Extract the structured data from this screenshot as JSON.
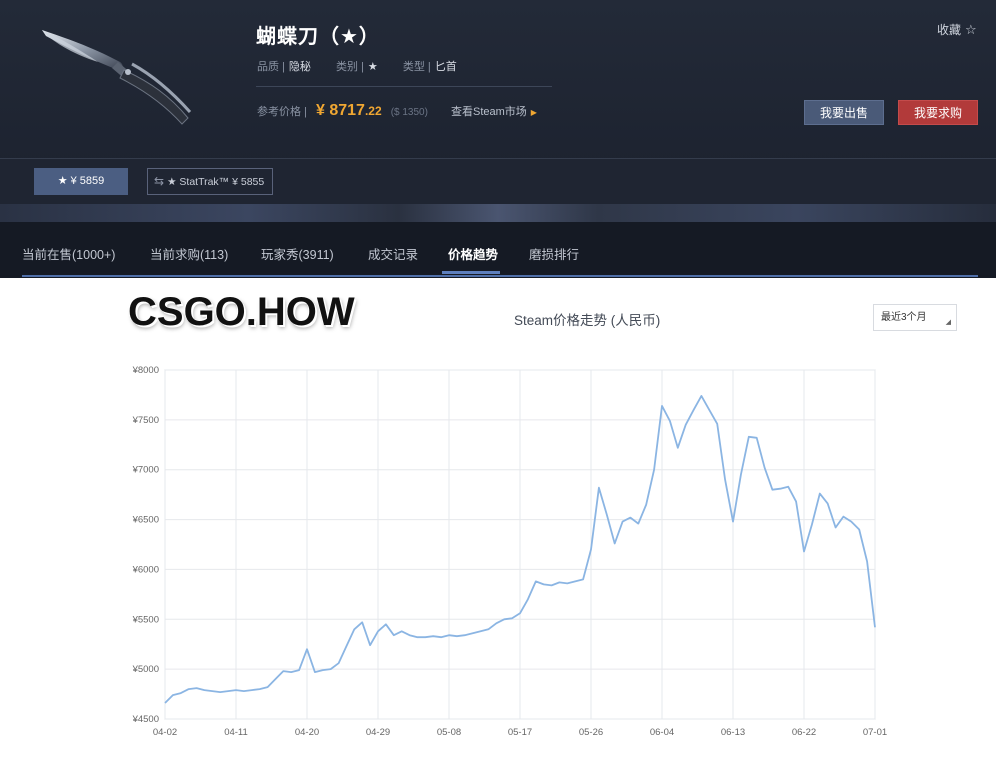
{
  "item": {
    "title": "蝴蝶刀（★）",
    "quality_label": "品质 |",
    "quality_value": "隐秘",
    "category_label": "类别 |",
    "category_value": "★",
    "type_label": "类型 |",
    "type_value": "匕首",
    "ref_price_label": "参考价格 |",
    "price_symbol": "¥",
    "price_int": "8717",
    "price_cents": ".22",
    "price_sub": "($ 1350)",
    "steam_link": "查看Steam市场",
    "fav_label": "收藏"
  },
  "actions": {
    "sell": "我要出售",
    "buy": "我要求购"
  },
  "variants": {
    "normal": "★ ¥ 5859",
    "stattrak": "★ StatTrak™ ¥ 5855"
  },
  "tabs": [
    {
      "label": "当前在售(1000+)"
    },
    {
      "label": "当前求购(113)"
    },
    {
      "label": "玩家秀(3911)"
    },
    {
      "label": "成交记录"
    },
    {
      "label": "价格趋势"
    },
    {
      "label": "磨损排行"
    }
  ],
  "watermark": "CSGO.HOW",
  "range_select": "最近3个月",
  "colors": {
    "line": "#8bb5e3",
    "accent_price": "#f0a732",
    "sell_btn": "#4a5a78",
    "buy_btn": "#b23a3a"
  },
  "chart_data": {
    "type": "line",
    "title": "Steam价格走势 (人民币)",
    "y_ticks": [
      "¥4500",
      "¥5000",
      "¥5500",
      "¥6000",
      "¥6500",
      "¥7000",
      "¥7500",
      "¥8000"
    ],
    "x_ticks": [
      "04-02",
      "04-11",
      "04-20",
      "04-29",
      "05-08",
      "05-17",
      "05-26",
      "06-04",
      "06-13",
      "06-22",
      "07-01"
    ],
    "ylim": [
      4500,
      8000
    ],
    "grid": true,
    "series": [
      {
        "x": [
          "04-02",
          "04-03",
          "04-04",
          "04-05",
          "04-06",
          "04-07",
          "04-08",
          "04-09",
          "04-10",
          "04-11",
          "04-12",
          "04-13",
          "04-14",
          "04-15",
          "04-16",
          "04-17",
          "04-18",
          "04-19",
          "04-20",
          "04-21",
          "04-22",
          "04-23",
          "04-24",
          "04-25",
          "04-26",
          "04-27",
          "04-28",
          "04-29",
          "04-30",
          "05-01",
          "05-02",
          "05-03",
          "05-04",
          "05-05",
          "05-06",
          "05-07",
          "05-08",
          "05-09",
          "05-10",
          "05-11",
          "05-12",
          "05-13",
          "05-14",
          "05-15",
          "05-16",
          "05-17",
          "05-18",
          "05-19",
          "05-20",
          "05-21",
          "05-22",
          "05-23",
          "05-24",
          "05-25",
          "05-26",
          "05-27",
          "05-28",
          "05-29",
          "05-30",
          "05-31",
          "06-01",
          "06-02",
          "06-03",
          "06-04",
          "06-05",
          "06-06",
          "06-07",
          "06-08",
          "06-09",
          "06-10",
          "06-11",
          "06-12",
          "06-13",
          "06-14",
          "06-15",
          "06-16",
          "06-17",
          "06-18",
          "06-19",
          "06-20",
          "06-21",
          "06-22",
          "06-23",
          "06-24",
          "06-25",
          "06-26",
          "06-27",
          "06-28",
          "06-29",
          "06-30",
          "07-01"
        ],
        "values": [
          4660,
          4740,
          4760,
          4800,
          4810,
          4790,
          4780,
          4770,
          4780,
          4790,
          4780,
          4790,
          4800,
          4820,
          4900,
          4980,
          4970,
          4990,
          5200,
          4970,
          4990,
          5000,
          5060,
          5230,
          5400,
          5470,
          5240,
          5380,
          5450,
          5340,
          5380,
          5340,
          5320,
          5320,
          5330,
          5320,
          5340,
          5330,
          5340,
          5360,
          5380,
          5400,
          5460,
          5500,
          5510,
          5560,
          5700,
          5880,
          5850,
          5840,
          5870,
          5860,
          5880,
          5900,
          6200,
          6820,
          6550,
          6260,
          6480,
          6520,
          6460,
          6650,
          7000,
          7640,
          7490,
          7220,
          7450,
          7600,
          7740,
          7600,
          7460,
          6900,
          6480,
          6950,
          7330,
          7320,
          7020,
          6800,
          6810,
          6830,
          6680,
          6180,
          6450,
          6760,
          6660,
          6420,
          6530,
          6480,
          6400,
          6080,
          5420
        ]
      }
    ]
  }
}
